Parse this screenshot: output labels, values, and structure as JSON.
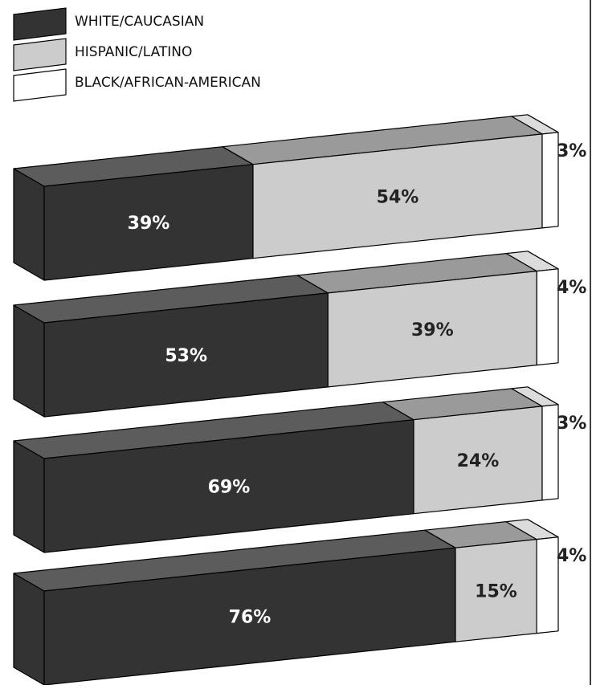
{
  "colors": {
    "white_caucasian": "#333333",
    "white_caucasian_top": "#5c5c5c",
    "hispanic_latino": "#cccccc",
    "hispanic_latino_top": "#9a9a9a",
    "black_african_american": "#ffffff",
    "black_african_american_top": "#dcdcdc",
    "outline": "#000000"
  },
  "chart_data": {
    "type": "bar",
    "orientation": "horizontal",
    "stacked": true,
    "normalized_percent": true,
    "style": "3d",
    "title": "",
    "xlabel": "",
    "ylabel": "",
    "legend": {
      "placement": "top-left",
      "entries": [
        {
          "key": "white_caucasian",
          "label": "WHITE/CAUCASIAN"
        },
        {
          "key": "hispanic_latino",
          "label": "HISPANIC/LATINO"
        },
        {
          "key": "black_african_american",
          "label": "BLACK/AFRICAN-AMERICAN"
        }
      ]
    },
    "series": [
      {
        "name": "WHITE/CAUCASIAN",
        "values": [
          39,
          53,
          69,
          76
        ]
      },
      {
        "name": "HISPANIC/LATINO",
        "values": [
          54,
          39,
          24,
          15
        ]
      },
      {
        "name": "BLACK/AFRICAN-AMERICAN",
        "values": [
          3,
          4,
          3,
          4
        ]
      }
    ],
    "data_labels": [
      [
        "39%",
        "54%",
        "3%"
      ],
      [
        "53%",
        "39%",
        "4%"
      ],
      [
        "69%",
        "24%",
        "3%"
      ],
      [
        "76%",
        "15%",
        "4%"
      ]
    ]
  }
}
